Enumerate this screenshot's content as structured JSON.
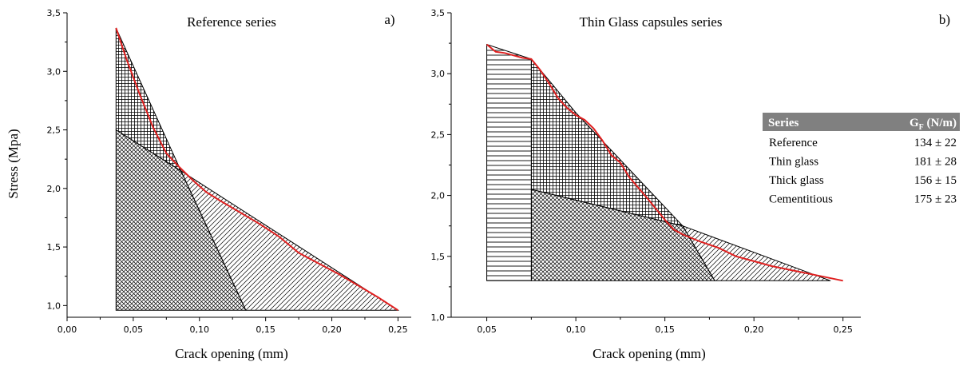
{
  "chart_data": [
    {
      "type": "area",
      "panel_label": "a)",
      "title": "Reference series",
      "xlabel": "Crack opening (mm)",
      "ylabel": "Stress (Mpa)",
      "xlim": [
        0,
        0.26
      ],
      "ylim": [
        0.9,
        3.5
      ],
      "xticks": [
        "0,00",
        "0,05",
        "0,10",
        "0,15",
        "0,20",
        "0,25"
      ],
      "yticks": [
        "1,0",
        "1,5",
        "2,0",
        "2,5",
        "3,0",
        "3,5"
      ],
      "xtick_values": [
        0,
        0.05,
        0.1,
        0.15,
        0.2,
        0.25
      ],
      "ytick_values": [
        1.0,
        1.5,
        2.0,
        2.5,
        3.0,
        3.5
      ],
      "curve": {
        "color": "#e02020",
        "x": [
          0.037,
          0.045,
          0.055,
          0.065,
          0.075,
          0.085,
          0.095,
          0.105,
          0.115,
          0.13,
          0.145,
          0.16,
          0.175,
          0.19,
          0.205,
          0.22,
          0.235,
          0.25
        ],
        "y": [
          3.37,
          3.1,
          2.8,
          2.52,
          2.3,
          2.18,
          2.07,
          1.97,
          1.9,
          1.8,
          1.7,
          1.59,
          1.45,
          1.36,
          1.27,
          1.17,
          1.07,
          0.96
        ]
      },
      "regions": [
        {
          "pattern": "grid",
          "points": [
            [
              0.037,
              3.37
            ],
            [
              0.08,
              2.3
            ],
            [
              0.086,
              2.15
            ],
            [
              0.037,
              2.5
            ]
          ]
        },
        {
          "pattern": "cross",
          "points": [
            [
              0.037,
              2.5
            ],
            [
              0.086,
              2.15
            ],
            [
              0.135,
              0.96
            ],
            [
              0.037,
              0.96
            ]
          ]
        },
        {
          "pattern": "diag",
          "points": [
            [
              0.086,
              2.15
            ],
            [
              0.25,
              0.96
            ],
            [
              0.135,
              0.96
            ]
          ]
        }
      ]
    },
    {
      "type": "area",
      "panel_label": "b)",
      "title": "Thin Glass capsules series",
      "xlabel": "Crack opening (mm)",
      "xlim": [
        0.03,
        0.26
      ],
      "ylim": [
        1.0,
        3.5
      ],
      "xticks": [
        "0,05",
        "0,10",
        "0,15",
        "0,20",
        "0,25"
      ],
      "yticks": [
        "1,0",
        "1,5",
        "2,0",
        "2,5",
        "3,0",
        "3,5"
      ],
      "xtick_values": [
        0.05,
        0.1,
        0.15,
        0.2,
        0.25
      ],
      "ytick_values": [
        1.0,
        1.5,
        2.0,
        2.5,
        3.0,
        3.5
      ],
      "curve": {
        "color": "#e02020",
        "x": [
          0.05,
          0.055,
          0.06,
          0.065,
          0.07,
          0.075,
          0.08,
          0.085,
          0.09,
          0.095,
          0.1,
          0.105,
          0.11,
          0.115,
          0.12,
          0.125,
          0.13,
          0.14,
          0.15,
          0.155,
          0.16,
          0.17,
          0.18,
          0.19,
          0.2,
          0.21,
          0.22,
          0.23,
          0.24,
          0.25
        ],
        "y": [
          3.24,
          3.18,
          3.17,
          3.15,
          3.13,
          3.12,
          3.03,
          2.92,
          2.8,
          2.72,
          2.66,
          2.62,
          2.55,
          2.45,
          2.33,
          2.27,
          2.15,
          1.98,
          1.8,
          1.72,
          1.68,
          1.62,
          1.57,
          1.5,
          1.46,
          1.42,
          1.39,
          1.36,
          1.33,
          1.3
        ]
      },
      "regions": [
        {
          "pattern": "hlines",
          "points": [
            [
              0.05,
              3.24
            ],
            [
              0.075,
              3.12
            ],
            [
              0.075,
              1.3
            ],
            [
              0.05,
              1.3
            ]
          ]
        },
        {
          "pattern": "grid",
          "points": [
            [
              0.075,
              3.12
            ],
            [
              0.1,
              2.68
            ],
            [
              0.16,
              1.75
            ],
            [
              0.075,
              2.05
            ]
          ]
        },
        {
          "pattern": "cross",
          "points": [
            [
              0.075,
              2.05
            ],
            [
              0.16,
              1.75
            ],
            [
              0.178,
              1.3
            ],
            [
              0.075,
              1.3
            ]
          ]
        },
        {
          "pattern": "diag",
          "points": [
            [
              0.16,
              1.75
            ],
            [
              0.243,
              1.3
            ],
            [
              0.178,
              1.3
            ]
          ]
        }
      ],
      "table": {
        "headers": [
          "Series",
          "G",
          "F",
          " (N/m)"
        ],
        "header_bg": "#808080",
        "rows": [
          {
            "series": "Reference",
            "value": "134 ± 22"
          },
          {
            "series": "Thin glass",
            "value": "181 ± 28"
          },
          {
            "series": "Thick glass",
            "value": "156 ± 15"
          },
          {
            "series": "Cementitious",
            "value": "175 ± 23"
          }
        ]
      }
    }
  ]
}
